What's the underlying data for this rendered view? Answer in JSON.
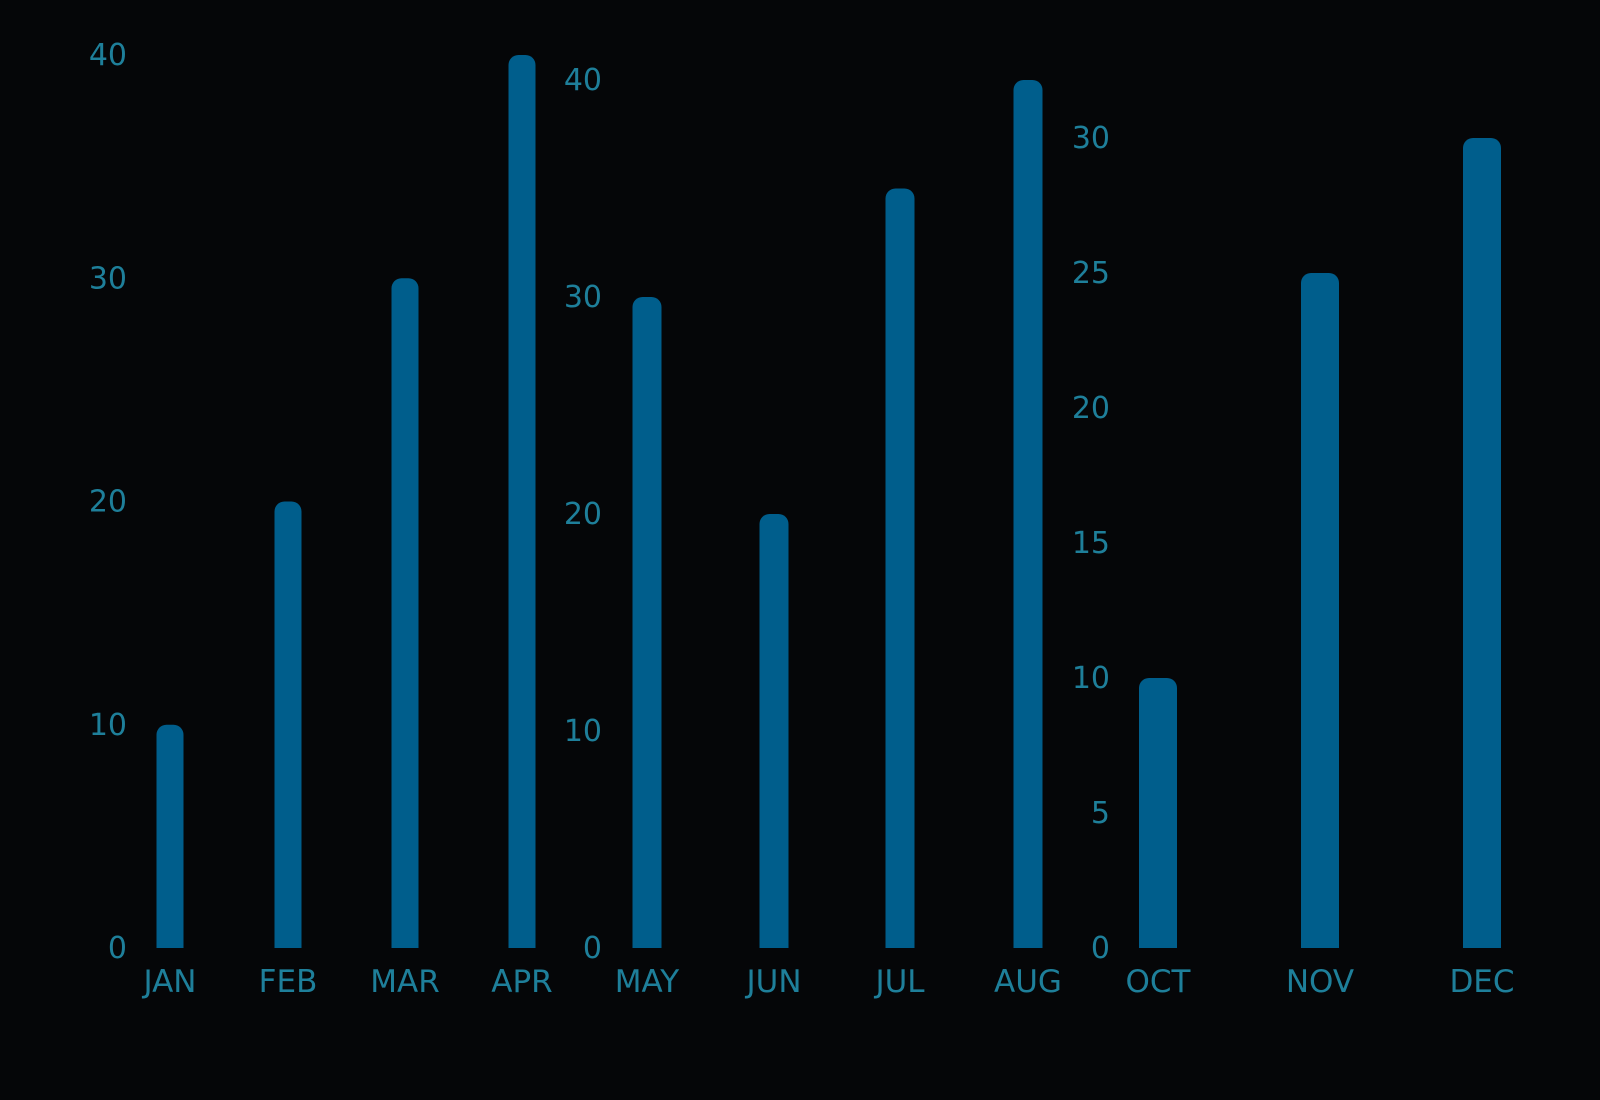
{
  "chart_data": [
    {
      "type": "bar",
      "categories": [
        "JAN",
        "FEB",
        "MAR",
        "APR"
      ],
      "values": [
        10,
        20,
        30,
        40
      ],
      "ylim": [
        0,
        40
      ],
      "yticks": [
        "0",
        "10",
        "20",
        "30",
        "40"
      ],
      "grid": false
    },
    {
      "type": "bar",
      "categories": [
        "MAY",
        "JUN",
        "JUL",
        "AUG"
      ],
      "values": [
        30,
        20,
        35,
        40
      ],
      "ylim": [
        0,
        40
      ],
      "yticks": [
        "0",
        "10",
        "20",
        "30",
        "40"
      ],
      "grid": false
    },
    {
      "type": "bar",
      "categories": [
        "OCT",
        "NOV",
        "DEC"
      ],
      "values": [
        10,
        25,
        30
      ],
      "ylim": [
        0,
        30
      ],
      "yticks": [
        "0",
        "5",
        "10",
        "15",
        "20",
        "25",
        "30"
      ],
      "grid": false
    }
  ],
  "colors": {
    "bar": "#005e8c",
    "text": "#1e7f9a",
    "background": "#050608"
  }
}
